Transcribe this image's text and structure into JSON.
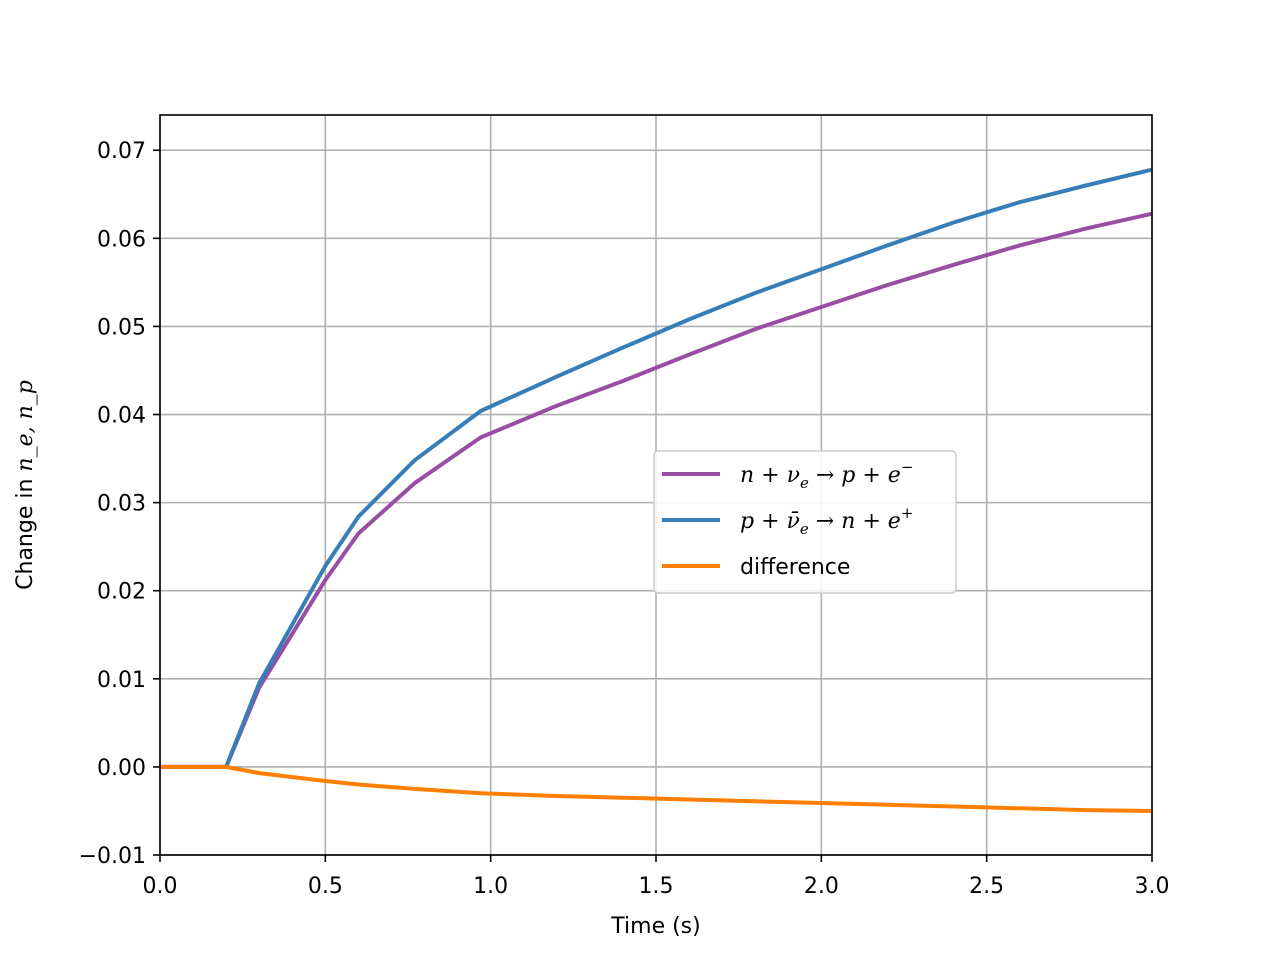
{
  "chart_data": {
    "type": "line",
    "xlabel": "Time (s)",
    "ylabel_prefix": "Change in ",
    "ylabel_math": "n_e, n_p",
    "xlim": [
      0.0,
      3.0
    ],
    "ylim": [
      -0.01,
      0.074
    ],
    "xticks": [
      "0.0",
      "0.5",
      "1.0",
      "1.5",
      "2.0",
      "2.5",
      "3.0"
    ],
    "xtick_values": [
      0.0,
      0.5,
      1.0,
      1.5,
      2.0,
      2.5,
      3.0
    ],
    "yticks": [
      "−0.01",
      "0.00",
      "0.01",
      "0.02",
      "0.03",
      "0.04",
      "0.05",
      "0.06",
      "0.07"
    ],
    "ytick_values": [
      -0.01,
      0.0,
      0.01,
      0.02,
      0.03,
      0.04,
      0.05,
      0.06,
      0.07
    ],
    "grid": true,
    "legend_position": "center-right",
    "series": [
      {
        "name": "n + ν_e → p + e⁻",
        "color": "#984ea3",
        "x": [
          0.0,
          0.2,
          0.3,
          0.5,
          0.6,
          0.77,
          0.97,
          1.2,
          1.4,
          1.6,
          1.8,
          2.0,
          2.2,
          2.4,
          2.6,
          2.8,
          3.0
        ],
        "y": [
          0.0,
          0.0,
          0.009,
          0.0212,
          0.0265,
          0.0322,
          0.0374,
          0.041,
          0.0438,
          0.0468,
          0.0497,
          0.0522,
          0.0547,
          0.057,
          0.0592,
          0.0611,
          0.0628
        ]
      },
      {
        "name": "p + ν̄_e → n + e⁺",
        "color": "#377eb8",
        "x": [
          0.0,
          0.2,
          0.3,
          0.5,
          0.6,
          0.77,
          0.97,
          1.2,
          1.4,
          1.6,
          1.8,
          2.0,
          2.2,
          2.4,
          2.6,
          2.8,
          3.0
        ],
        "y": [
          0.0,
          0.0,
          0.0095,
          0.0228,
          0.0284,
          0.0348,
          0.0404,
          0.0443,
          0.0476,
          0.0508,
          0.0538,
          0.0565,
          0.0592,
          0.0618,
          0.0641,
          0.066,
          0.0678
        ]
      },
      {
        "name": "difference",
        "color": "#ff7f00",
        "x": [
          0.0,
          0.2,
          0.3,
          0.5,
          0.6,
          0.77,
          0.97,
          1.2,
          1.4,
          1.6,
          1.8,
          2.0,
          2.2,
          2.4,
          2.6,
          2.8,
          3.0
        ],
        "y": [
          0.0,
          0.0,
          -0.0007,
          -0.0016,
          -0.002,
          -0.0025,
          -0.003,
          -0.0033,
          -0.0035,
          -0.0037,
          -0.0039,
          -0.0041,
          -0.0043,
          -0.0045,
          -0.0047,
          -0.0049,
          -0.005
        ]
      }
    ],
    "legend": {
      "entries": [
        {
          "lhs": "n",
          "op1": " + ",
          "mid": "ν",
          "sub": "e",
          "arrow": " → ",
          "rhs": "p + e",
          "sup": "−"
        },
        {
          "lhs": "p",
          "op1": " + ",
          "mid": "ν̄",
          "sub": "e",
          "arrow": " → ",
          "rhs": "n + e",
          "sup": "+"
        },
        {
          "text": "difference"
        }
      ]
    }
  }
}
